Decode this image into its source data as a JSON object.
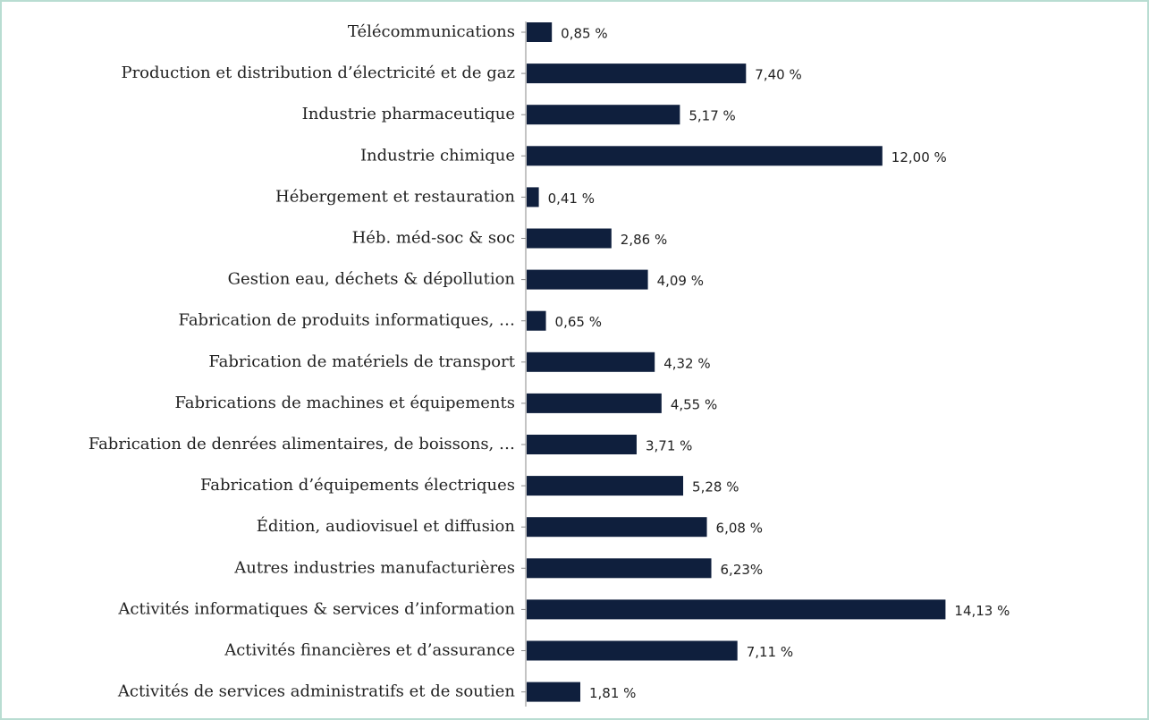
{
  "chart_data": {
    "type": "bar",
    "orientation": "horizontal",
    "categories": [
      "Télécommunications",
      "Production et distribution d’électricité et de gaz",
      "Industrie pharmaceutique",
      "Industrie chimique",
      "Hébergement et restauration",
      "Héb. méd-soc & soc",
      "Gestion eau, déchets & dépollution",
      "Fabrication de produits informatiques, …",
      "Fabrication de matériels de transport",
      "Fabrications de machines et équipements",
      "Fabrication de denrées alimentaires, de boissons, …",
      "Fabrication d’équipements électriques",
      "Édition, audiovisuel et diffusion",
      "Autres industries manufacturières",
      "Activités informatiques & services d’information",
      "Activités financières et d’assurance",
      "Activités de services administratifs et de soutien"
    ],
    "values": [
      0.85,
      7.4,
      5.17,
      12.0,
      0.41,
      2.86,
      4.09,
      0.65,
      4.32,
      4.55,
      3.71,
      5.28,
      6.08,
      6.23,
      14.13,
      7.11,
      1.81
    ],
    "value_labels": [
      "0,85 %",
      "7,40 %",
      "5,17 %",
      "12,00 %",
      "0,41 %",
      "2,86 %",
      "4,09 %",
      "0,65 %",
      "4,32 %",
      "4,55 %",
      "3,71 %",
      "5,28 %",
      "6,08 %",
      "6,23%",
      "14,13 %",
      "7,11 %",
      "1,81 %"
    ],
    "color": "#0f1f3d"
  }
}
